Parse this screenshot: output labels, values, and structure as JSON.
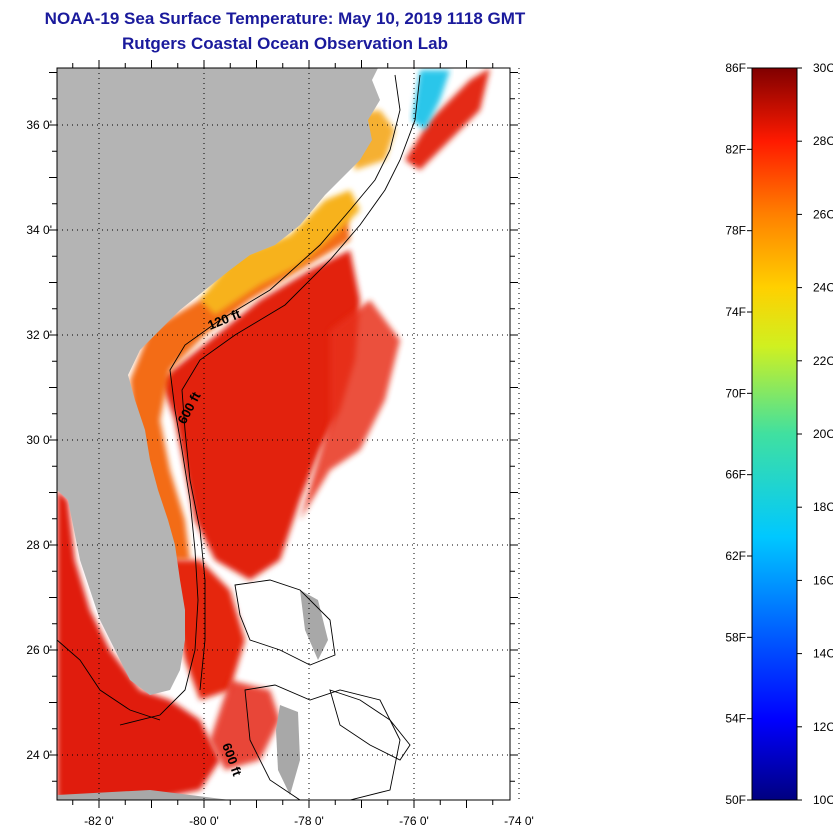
{
  "title_line1": "NOAA-19 Sea Surface Temperature:  May 10, 2019 1118 GMT",
  "title_line2": "Rutgers Coastal Ocean Observation Lab",
  "map": {
    "lat_labels": [
      {
        "lat": 36,
        "text": "36 0'"
      },
      {
        "lat": 34,
        "text": "34 0'"
      },
      {
        "lat": 32,
        "text": "32 0'"
      },
      {
        "lat": 30,
        "text": "30 0'"
      },
      {
        "lat": 28,
        "text": "28 0'"
      },
      {
        "lat": 26,
        "text": "26 0'"
      },
      {
        "lat": 24,
        "text": "24 0'"
      }
    ],
    "lon_labels": [
      {
        "lon": -82,
        "text": "-82 0'"
      },
      {
        "lon": -80,
        "text": "-80 0'"
      },
      {
        "lon": -78,
        "text": "-78 0'"
      },
      {
        "lon": -76,
        "text": "-76 0'"
      },
      {
        "lon": -74,
        "text": "-74 0'"
      }
    ],
    "contour_labels": [
      "120 ft",
      "600 ft",
      "600 ft"
    ],
    "colors": {
      "land": "#b4b4b4",
      "ocean_nodata": "#ffffff",
      "warm_red": "#e01f10",
      "orange": "#f26a16",
      "yellow_orange": "#f7b11b",
      "cool_cyan": "#23c4e8"
    }
  },
  "colorbar": {
    "f_labels": [
      "86F",
      "82F",
      "78F",
      "74F",
      "70F",
      "66F",
      "62F",
      "58F",
      "54F",
      "50F"
    ],
    "c_labels": [
      "30C",
      "28C",
      "26C",
      "24C",
      "22C",
      "20C",
      "18C",
      "16C",
      "14C",
      "12C",
      "10C"
    ],
    "range_f": [
      50,
      86
    ],
    "range_c": [
      10,
      30
    ],
    "colormap": "jet"
  }
}
